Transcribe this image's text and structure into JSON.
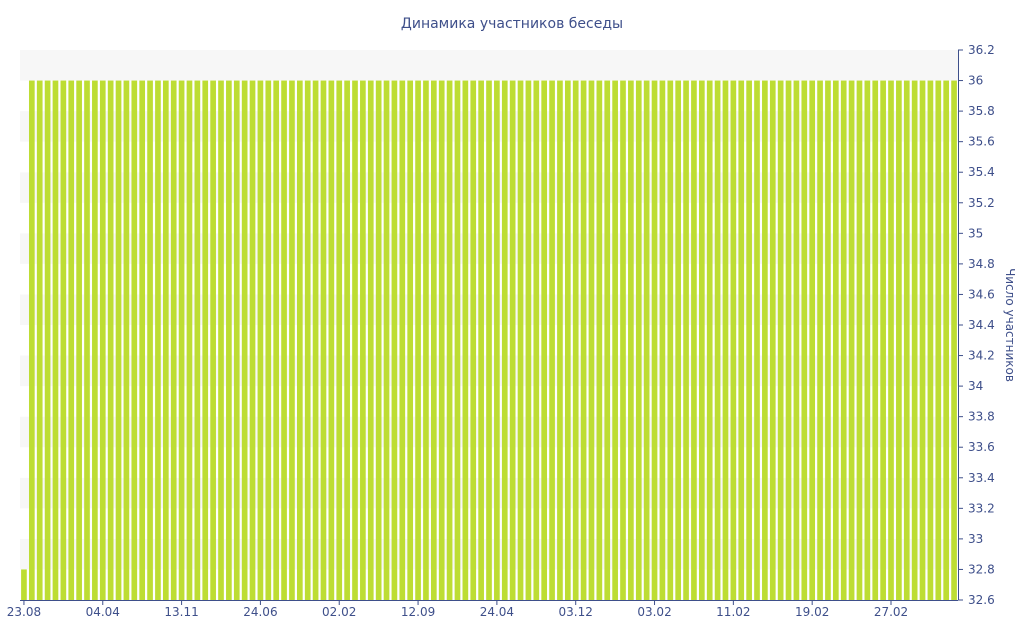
{
  "chart_data": {
    "type": "bar",
    "title": "Динамика участников беседы",
    "xlabel": "",
    "ylabel": "Число участников",
    "ylim": [
      32.6,
      36.2
    ],
    "yticks": [
      32.6,
      32.8,
      33,
      33.2,
      33.4,
      33.6,
      33.8,
      34,
      34.2,
      34.4,
      34.6,
      34.8,
      35,
      35.2,
      35.4,
      35.6,
      35.8,
      36,
      36.2
    ],
    "yaxis_position": "right",
    "grid": false,
    "legend": "none",
    "bar_color": "#bddd33",
    "xtick_labels": [
      {
        "index": 0,
        "label": "23.08"
      },
      {
        "index": 10,
        "label": "04.04"
      },
      {
        "index": 20,
        "label": "13.11"
      },
      {
        "index": 30,
        "label": "24.06"
      },
      {
        "index": 40,
        "label": "02.02"
      },
      {
        "index": 50,
        "label": "12.09"
      },
      {
        "index": 60,
        "label": "24.04"
      },
      {
        "index": 70,
        "label": "03.12"
      },
      {
        "index": 80,
        "label": "03.02"
      },
      {
        "index": 90,
        "label": "11.02"
      },
      {
        "index": 100,
        "label": "19.02"
      },
      {
        "index": 110,
        "label": "27.02"
      }
    ],
    "values": [
      32.8,
      36,
      36,
      36,
      36,
      36,
      36,
      36,
      36,
      36,
      36,
      36,
      36,
      36,
      36,
      36,
      36,
      36,
      36,
      36,
      36,
      36,
      36,
      36,
      36,
      36,
      36,
      36,
      36,
      36,
      36,
      36,
      36,
      36,
      36,
      36,
      36,
      36,
      36,
      36,
      36,
      36,
      36,
      36,
      36,
      36,
      36,
      36,
      36,
      36,
      36,
      36,
      36,
      36,
      36,
      36,
      36,
      36,
      36,
      36,
      36,
      36,
      36,
      36,
      36,
      36,
      36,
      36,
      36,
      36,
      36,
      36,
      36,
      36,
      36,
      36,
      36,
      36,
      36,
      36,
      36,
      36,
      36,
      36,
      36,
      36,
      36,
      36,
      36,
      36,
      36,
      36,
      36,
      36,
      36,
      36,
      36,
      36,
      36,
      36,
      36,
      36,
      36,
      36,
      36,
      36,
      36,
      36,
      36,
      36,
      36,
      36,
      36,
      36,
      36,
      36,
      36,
      36,
      36
    ]
  }
}
